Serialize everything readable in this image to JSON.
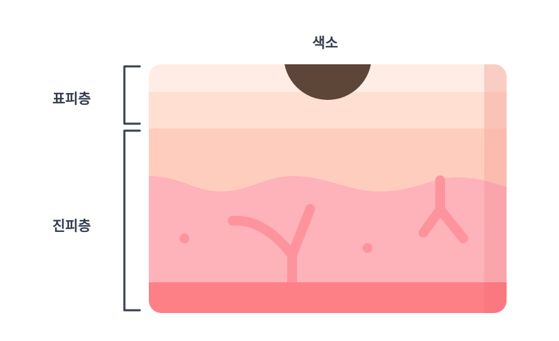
{
  "labels": {
    "pigment": "색소",
    "epidermis": "표피층",
    "dermis": "진피층"
  },
  "colors": {
    "bracket": "#3b4256",
    "text": "#333a4d",
    "epidermis_top": "#ffece4",
    "epidermis_bottom": "#ffdfd1",
    "upper_dermis": "#ffcdbd",
    "lower_dermis": "#feb2ba",
    "vessel": "#fd949d",
    "base_layer": "#fe8087",
    "pigment": "#5d4537"
  }
}
